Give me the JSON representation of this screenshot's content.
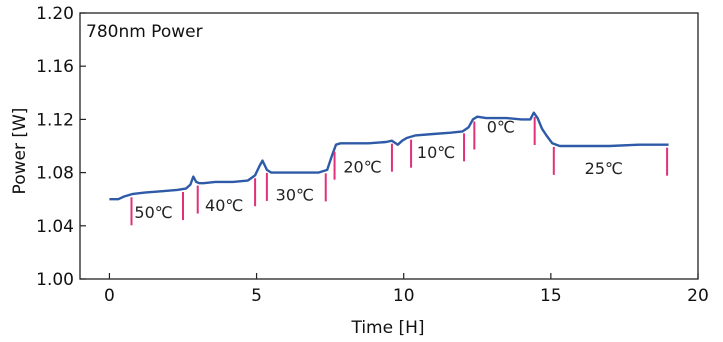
{
  "chart_data": {
    "type": "line",
    "title": "780nm Power",
    "xlabel": "Time [H]",
    "ylabel": "Power [W]",
    "xlim": [
      -1,
      20
    ],
    "ylim": [
      1.0,
      1.2
    ],
    "x_ticks": [
      0,
      5,
      10,
      15,
      20
    ],
    "y_ticks": [
      1.0,
      1.04,
      1.08,
      1.12,
      1.16,
      1.2
    ],
    "x_tick_labels": [
      "0",
      "5",
      "10",
      "15",
      "20"
    ],
    "y_tick_labels": [
      "1.00",
      "1.04",
      "1.08",
      "1.12",
      "1.16",
      "1.20"
    ],
    "grid": false,
    "line_color": "#2e5aa8",
    "marker_color": "#e0307a",
    "series": [
      {
        "x": [
          0,
          0.3,
          0.5,
          0.8,
          1.2,
          1.8,
          2.3,
          2.6,
          2.75,
          2.85,
          2.95,
          3.05,
          3.2,
          3.6,
          4.2,
          4.7,
          4.95,
          5.1,
          5.2,
          5.35,
          5.5,
          5.8,
          6.5,
          7.1,
          7.4,
          7.55,
          7.7,
          7.85,
          8.2,
          8.8,
          9.4,
          9.6,
          9.8,
          9.95,
          10.1,
          10.4,
          11.0,
          11.6,
          12.0,
          12.2,
          12.35,
          12.5,
          12.8,
          13.5,
          14.0,
          14.3,
          14.42,
          14.55,
          14.7,
          14.85,
          15.05,
          15.3,
          16,
          17,
          18,
          19
        ],
        "y": [
          1.06,
          1.06,
          1.062,
          1.064,
          1.065,
          1.066,
          1.067,
          1.068,
          1.071,
          1.077,
          1.073,
          1.072,
          1.072,
          1.073,
          1.073,
          1.074,
          1.078,
          1.085,
          1.089,
          1.082,
          1.08,
          1.08,
          1.08,
          1.08,
          1.082,
          1.092,
          1.101,
          1.102,
          1.102,
          1.102,
          1.103,
          1.104,
          1.101,
          1.104,
          1.106,
          1.108,
          1.109,
          1.11,
          1.111,
          1.114,
          1.12,
          1.122,
          1.121,
          1.121,
          1.12,
          1.12,
          1.125,
          1.121,
          1.113,
          1.108,
          1.102,
          1.1,
          1.1,
          1.1,
          1.101,
          1.101
        ]
      }
    ],
    "temperature_markers": [
      0.75,
      2.5,
      3.0,
      4.95,
      5.35,
      7.35,
      7.65,
      9.6,
      10.25,
      12.05,
      12.4,
      14.45,
      15.1,
      18.95
    ],
    "annotations": [
      {
        "text": "50℃",
        "x": 1.5,
        "y": 1.046
      },
      {
        "text": "40℃",
        "x": 3.9,
        "y": 1.051
      },
      {
        "text": "30℃",
        "x": 6.3,
        "y": 1.059
      },
      {
        "text": "20℃",
        "x": 8.6,
        "y": 1.08
      },
      {
        "text": "10℃",
        "x": 11.1,
        "y": 1.091
      },
      {
        "text": "0℃",
        "x": 13.3,
        "y": 1.11
      },
      {
        "text": "25℃",
        "x": 16.8,
        "y": 1.079
      }
    ]
  }
}
